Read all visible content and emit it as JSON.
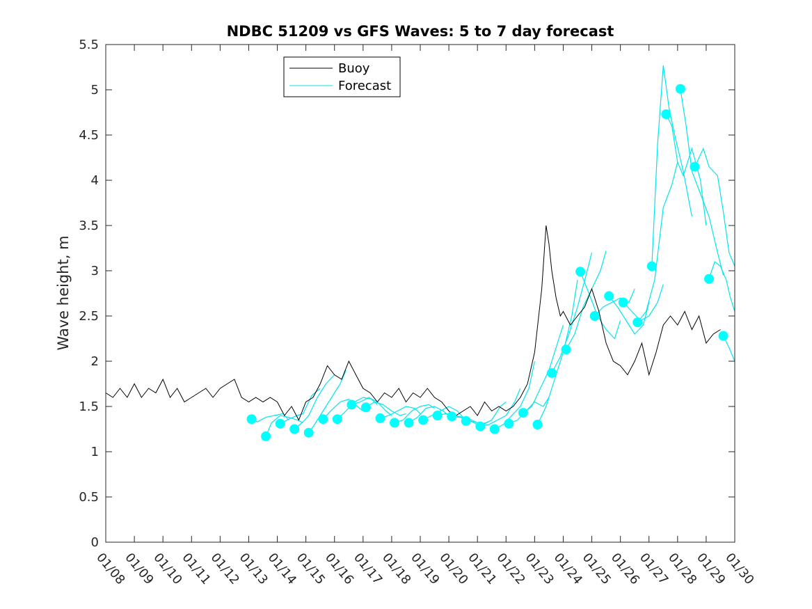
{
  "chart_data": {
    "type": "line",
    "title": "NDBC 51209 vs GFS Waves: 5 to 7 day forecast",
    "xlabel": "",
    "ylabel": "Wave height, m",
    "xlim": [
      0,
      22
    ],
    "ylim": [
      0,
      5.5
    ],
    "x_tick_labels": [
      "01/08",
      "01/09",
      "01/10",
      "01/11",
      "01/12",
      "01/13",
      "01/14",
      "01/15",
      "01/16",
      "01/17",
      "01/18",
      "01/19",
      "01/20",
      "01/21",
      "01/22",
      "01/23",
      "01/24",
      "01/25",
      "01/26",
      "01/27",
      "01/28",
      "01/29",
      "01/30"
    ],
    "y_ticks": [
      0,
      0.5,
      1,
      1.5,
      2,
      2.5,
      3,
      3.5,
      4,
      4.5,
      5,
      5.5
    ],
    "y_tick_labels": [
      "0",
      "0.5",
      "1",
      "1.5",
      "2",
      "2.5",
      "3",
      "3.5",
      "4",
      "4.5",
      "5",
      "5.5"
    ],
    "grid": false,
    "legend": {
      "placement": "top-center",
      "entries": [
        {
          "label": "Buoy",
          "color": "#000000"
        },
        {
          "label": "Forecast",
          "color": "#00e5ee"
        }
      ]
    },
    "colors": {
      "buoy": "#000000",
      "forecast": "#00e5ee",
      "marker": "#00ffff"
    },
    "series": [
      {
        "name": "Buoy",
        "x": [
          0.0,
          0.25,
          0.5,
          0.75,
          1.0,
          1.25,
          1.5,
          1.75,
          2.0,
          2.25,
          2.5,
          2.75,
          3.0,
          3.25,
          3.5,
          3.75,
          4.0,
          4.25,
          4.5,
          4.75,
          5.0,
          5.25,
          5.5,
          5.75,
          6.0,
          6.25,
          6.5,
          6.75,
          7.0,
          7.25,
          7.5,
          7.75,
          8.0,
          8.25,
          8.5,
          8.75,
          9.0,
          9.25,
          9.5,
          9.75,
          10.0,
          10.25,
          10.5,
          10.75,
          11.0,
          11.25,
          11.5,
          11.75,
          12.0,
          12.25,
          12.5,
          12.75,
          13.0,
          13.25,
          13.5,
          13.75,
          14.0,
          14.25,
          14.5,
          14.75,
          15.0,
          15.25,
          15.4,
          15.5,
          15.6,
          15.75,
          15.9,
          16.0,
          16.25,
          16.5,
          16.75,
          17.0,
          17.25,
          17.5,
          17.75,
          18.0,
          18.25,
          18.5,
          18.75,
          19.0,
          19.25,
          19.5,
          19.75,
          20.0,
          20.25,
          20.5,
          20.75,
          21.0,
          21.25,
          21.5
        ],
        "values": [
          1.65,
          1.6,
          1.7,
          1.6,
          1.75,
          1.6,
          1.7,
          1.65,
          1.8,
          1.6,
          1.7,
          1.55,
          1.6,
          1.65,
          1.7,
          1.6,
          1.7,
          1.75,
          1.8,
          1.6,
          1.55,
          1.6,
          1.55,
          1.6,
          1.55,
          1.4,
          1.5,
          1.35,
          1.55,
          1.6,
          1.75,
          1.95,
          1.85,
          1.8,
          2.0,
          1.85,
          1.7,
          1.65,
          1.55,
          1.65,
          1.6,
          1.7,
          1.55,
          1.65,
          1.6,
          1.7,
          1.6,
          1.55,
          1.45,
          1.4,
          1.45,
          1.5,
          1.4,
          1.55,
          1.45,
          1.5,
          1.45,
          1.5,
          1.6,
          1.75,
          2.1,
          2.8,
          3.5,
          3.3,
          3.0,
          2.7,
          2.5,
          2.55,
          2.4,
          2.5,
          2.6,
          2.8,
          2.55,
          2.2,
          2.0,
          1.95,
          1.85,
          2.0,
          2.2,
          1.85,
          2.1,
          2.4,
          2.5,
          2.4,
          2.55,
          2.35,
          2.5,
          2.2,
          2.3,
          2.35
        ]
      },
      {
        "name": "Forecast",
        "segments": [
          {
            "x": [
              5.1,
              5.3,
              5.6,
              5.9,
              6.2,
              6.4
            ],
            "values": [
              1.36,
              1.33,
              1.38,
              1.4,
              1.42,
              1.35
            ]
          },
          {
            "x": [
              5.6,
              5.8,
              6.1,
              6.4,
              6.7,
              6.9
            ],
            "values": [
              1.17,
              1.32,
              1.4,
              1.38,
              1.35,
              1.32
            ]
          },
          {
            "x": [
              6.1,
              6.4,
              6.7,
              6.9,
              7.2,
              7.5
            ],
            "values": [
              1.31,
              1.36,
              1.4,
              1.42,
              1.62,
              1.7
            ]
          },
          {
            "x": [
              6.6,
              6.9,
              7.1,
              7.4,
              7.7,
              8.0
            ],
            "values": [
              1.25,
              1.33,
              1.4,
              1.6,
              1.75,
              1.85
            ]
          },
          {
            "x": [
              7.1,
              7.3,
              7.6,
              7.9,
              8.2,
              8.4
            ],
            "values": [
              1.21,
              1.3,
              1.45,
              1.6,
              1.75,
              1.9
            ]
          },
          {
            "x": [
              7.6,
              7.9,
              8.2,
              8.5,
              8.8,
              9.0
            ],
            "values": [
              1.36,
              1.46,
              1.55,
              1.58,
              1.5,
              1.45
            ]
          },
          {
            "x": [
              8.1,
              8.4,
              8.7,
              9.0,
              9.3,
              9.5
            ],
            "values": [
              1.36,
              1.45,
              1.55,
              1.6,
              1.58,
              1.52
            ]
          },
          {
            "x": [
              8.6,
              8.9,
              9.2,
              9.5,
              9.8,
              10.0
            ],
            "values": [
              1.52,
              1.55,
              1.6,
              1.55,
              1.45,
              1.4
            ]
          },
          {
            "x": [
              9.1,
              9.4,
              9.7,
              10.0,
              10.3,
              10.5
            ],
            "values": [
              1.49,
              1.55,
              1.52,
              1.45,
              1.4,
              1.42
            ]
          },
          {
            "x": [
              9.6,
              9.9,
              10.2,
              10.5,
              10.8,
              11.0
            ],
            "values": [
              1.37,
              1.4,
              1.45,
              1.5,
              1.48,
              1.42
            ]
          },
          {
            "x": [
              10.1,
              10.4,
              10.7,
              11.0,
              11.3,
              11.5
            ],
            "values": [
              1.32,
              1.35,
              1.45,
              1.5,
              1.52,
              1.48
            ]
          },
          {
            "x": [
              10.6,
              10.9,
              11.2,
              11.5,
              11.8,
              12.0
            ],
            "values": [
              1.32,
              1.38,
              1.48,
              1.5,
              1.45,
              1.4
            ]
          },
          {
            "x": [
              11.1,
              11.4,
              11.7,
              12.0,
              12.3,
              12.5
            ],
            "values": [
              1.35,
              1.4,
              1.45,
              1.5,
              1.45,
              1.38
            ]
          },
          {
            "x": [
              11.6,
              11.9,
              12.2,
              12.5,
              12.8,
              13.0
            ],
            "values": [
              1.4,
              1.42,
              1.4,
              1.38,
              1.35,
              1.32
            ]
          },
          {
            "x": [
              12.1,
              12.4,
              12.7,
              13.0,
              13.3,
              13.5
            ],
            "values": [
              1.39,
              1.38,
              1.35,
              1.3,
              1.32,
              1.35
            ]
          },
          {
            "x": [
              12.6,
              12.9,
              13.2,
              13.5,
              13.8,
              14.0
            ],
            "values": [
              1.34,
              1.33,
              1.3,
              1.35,
              1.5,
              1.55
            ]
          },
          {
            "x": [
              13.1,
              13.4,
              13.7,
              14.0,
              14.3,
              14.5
            ],
            "values": [
              1.28,
              1.3,
              1.35,
              1.4,
              1.55,
              1.7
            ]
          },
          {
            "x": [
              13.6,
              13.9,
              14.2,
              14.5,
              14.8,
              15.0
            ],
            "values": [
              1.25,
              1.3,
              1.4,
              1.5,
              1.7,
              2.0
            ]
          },
          {
            "x": [
              14.1,
              14.4,
              14.7,
              15.0,
              15.3,
              15.5
            ],
            "values": [
              1.31,
              1.35,
              1.45,
              1.55,
              1.5,
              1.6
            ]
          },
          {
            "x": [
              14.6,
              14.9,
              15.2,
              15.5,
              15.8,
              16.0
            ],
            "values": [
              1.43,
              1.5,
              1.7,
              1.9,
              2.2,
              2.4
            ]
          },
          {
            "x": [
              15.1,
              15.4,
              15.7,
              16.0,
              16.3,
              16.5
            ],
            "values": [
              1.3,
              1.5,
              1.8,
              2.1,
              2.5,
              2.9
            ]
          },
          {
            "x": [
              15.6,
              15.9,
              16.2,
              16.5,
              16.8,
              17.0
            ],
            "values": [
              1.87,
              2.05,
              2.3,
              2.6,
              2.95,
              3.2
            ]
          },
          {
            "x": [
              16.1,
              16.4,
              16.7,
              17.0,
              17.3,
              17.5
            ],
            "values": [
              2.13,
              2.3,
              2.6,
              2.8,
              3.0,
              3.22
            ]
          },
          {
            "x": [
              16.6,
              16.9,
              17.2,
              17.5,
              17.8,
              18.0
            ],
            "values": [
              2.99,
              2.75,
              2.5,
              2.35,
              2.25,
              2.45
            ]
          },
          {
            "x": [
              17.1,
              17.4,
              17.7,
              18.0,
              18.3,
              18.5
            ],
            "values": [
              2.5,
              2.6,
              2.65,
              2.7,
              2.65,
              2.8
            ]
          },
          {
            "x": [
              17.6,
              17.9,
              18.2,
              18.5,
              18.8,
              19.0
            ],
            "values": [
              2.72,
              2.6,
              2.45,
              2.3,
              2.4,
              2.65
            ]
          },
          {
            "x": [
              18.1,
              18.4,
              18.7,
              19.0,
              19.3,
              19.5
            ],
            "values": [
              2.65,
              2.55,
              2.45,
              2.5,
              2.65,
              2.85
            ]
          },
          {
            "x": [
              18.6,
              18.9,
              19.2,
              19.5,
              19.8,
              20.0
            ],
            "values": [
              2.43,
              2.55,
              2.9,
              3.7,
              3.95,
              4.2
            ]
          },
          {
            "x": [
              19.1,
              19.3,
              19.5,
              19.7,
              19.9,
              20.2,
              20.5
            ],
            "values": [
              3.05,
              4.4,
              5.27,
              4.8,
              4.5,
              4.1,
              3.6
            ]
          },
          {
            "x": [
              19.6,
              19.8,
              20.0,
              20.2,
              20.5,
              20.8,
              21.0
            ],
            "values": [
              4.73,
              4.6,
              4.2,
              4.05,
              4.35,
              4.0,
              3.5
            ]
          },
          {
            "x": [
              20.1,
              20.3,
              20.5,
              20.8,
              21.1,
              21.4,
              21.6
            ],
            "values": [
              5.01,
              4.6,
              4.1,
              3.85,
              3.6,
              3.2,
              2.95
            ]
          },
          {
            "x": [
              20.6,
              20.9,
              21.1,
              21.4,
              21.6,
              21.8,
              22.0
            ],
            "values": [
              4.15,
              4.35,
              4.15,
              4.05,
              3.65,
              3.2,
              3.05
            ]
          },
          {
            "x": [
              21.1,
              21.3,
              21.5,
              21.7,
              21.85,
              22.0
            ],
            "values": [
              2.91,
              3.1,
              3.05,
              2.9,
              2.7,
              2.55
            ]
          },
          {
            "x": [
              21.6,
              21.8,
              22.0
            ],
            "values": [
              2.28,
              2.15,
              2.0
            ]
          }
        ],
        "markers": {
          "x": [
            5.1,
            5.6,
            6.1,
            6.6,
            7.1,
            7.6,
            8.1,
            8.6,
            9.1,
            9.6,
            10.1,
            10.6,
            11.1,
            11.6,
            12.1,
            12.6,
            13.1,
            13.6,
            14.1,
            14.6,
            15.1,
            15.6,
            16.1,
            16.6,
            17.1,
            17.6,
            18.1,
            18.6,
            19.1,
            19.6,
            20.1,
            20.6,
            21.1,
            21.6
          ],
          "values": [
            1.36,
            1.17,
            1.31,
            1.25,
            1.21,
            1.36,
            1.36,
            1.52,
            1.49,
            1.37,
            1.32,
            1.32,
            1.35,
            1.4,
            1.39,
            1.34,
            1.28,
            1.25,
            1.31,
            1.43,
            1.3,
            1.87,
            2.13,
            2.99,
            2.5,
            2.72,
            2.65,
            2.43,
            3.05,
            4.73,
            5.01,
            4.15,
            2.91,
            2.28
          ]
        }
      }
    ]
  }
}
